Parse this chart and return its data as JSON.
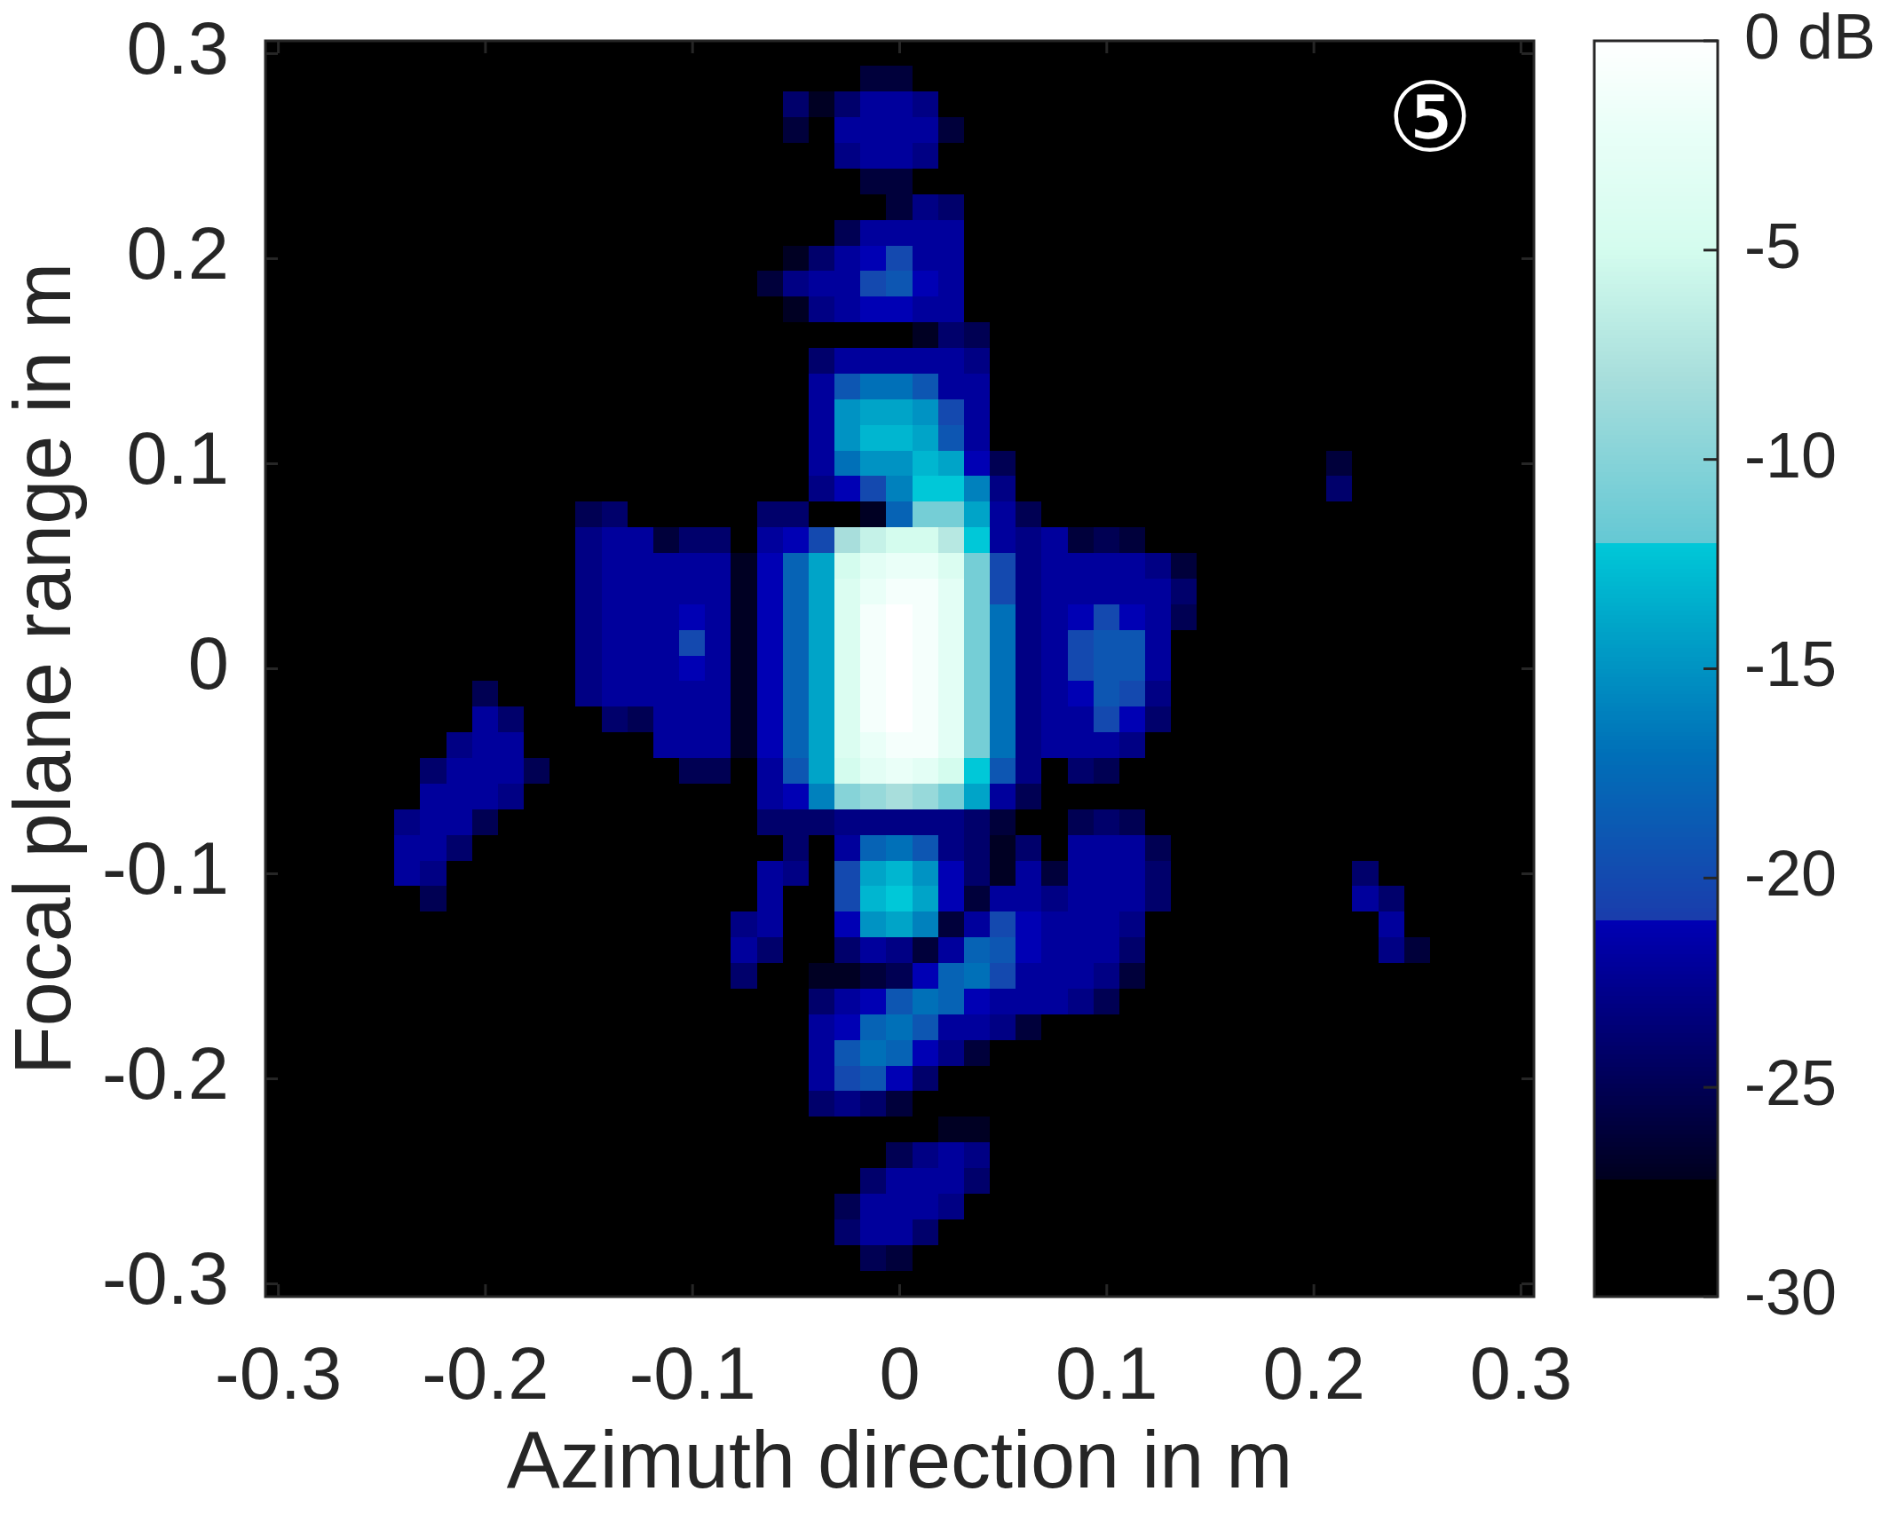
{
  "chart_data": {
    "type": "heatmap",
    "xlabel": "Azimuth direction in m",
    "ylabel": "Focal plane range in m",
    "annotations": [
      "⑤"
    ],
    "clim": [
      -30,
      0
    ],
    "cticks": [
      {
        "value": 0,
        "label": "0 dB"
      },
      -5,
      -10,
      -15,
      -20,
      -25,
      -30
    ],
    "categories": [
      "-0.3",
      null,
      null,
      null,
      null,
      null,
      null,
      null,
      "-0.2",
      null,
      null,
      null,
      null,
      null,
      null,
      null,
      "-0.1",
      null,
      null,
      null,
      null,
      null,
      null,
      null,
      "0",
      null,
      null,
      null,
      null,
      null,
      null,
      null,
      "0.1",
      null,
      null,
      null,
      null,
      null,
      null,
      null,
      "0.2",
      null,
      null,
      null,
      null,
      null,
      null,
      null,
      "0.3"
    ],
    "y_categories": [
      "0.3",
      null,
      null,
      null,
      null,
      null,
      null,
      null,
      "0.2",
      null,
      null,
      null,
      null,
      null,
      null,
      null,
      "0.1",
      null,
      null,
      null,
      null,
      null,
      null,
      null,
      "0",
      null,
      null,
      null,
      null,
      null,
      null,
      null,
      "-0.1",
      null,
      null,
      null,
      null,
      null,
      null,
      null,
      "-0.2",
      null,
      null,
      null,
      null,
      null,
      null,
      null,
      "-0.3"
    ],
    "cells": [
      [
        -30,
        -30,
        -30,
        -30,
        -30,
        -30,
        -30,
        -30,
        -30,
        -30,
        -30,
        -30,
        -30,
        -30,
        -30,
        -30,
        -30,
        -30,
        -30,
        -30,
        -30,
        -30,
        -30,
        -30,
        -30,
        -30,
        -30,
        -30,
        -30,
        -30,
        -30,
        -30,
        -30,
        -30,
        -30,
        -30,
        -30,
        -30,
        -30,
        -30,
        -30,
        -30,
        -30,
        -30,
        -30,
        -30,
        -30,
        -30,
        -30
      ],
      [
        -30,
        -30,
        -30,
        -30,
        -30,
        -30,
        -30,
        -30,
        -30,
        -30,
        -30,
        -30,
        -30,
        -30,
        -30,
        -30,
        -30,
        -30,
        -30,
        -30,
        -30,
        -30,
        -30,
        -26,
        -26,
        -30,
        -30,
        -30,
        -30,
        -30,
        -30,
        -30,
        -30,
        -30,
        -30,
        -30,
        -30,
        -30,
        -30,
        -30,
        -30,
        -30,
        -30,
        -30,
        -30,
        -30,
        -30,
        -30,
        -30
      ],
      [
        -30,
        -30,
        -30,
        -30,
        -30,
        -30,
        -30,
        -30,
        -30,
        -30,
        -30,
        -30,
        -30,
        -30,
        -30,
        -30,
        -30,
        -30,
        -30,
        -30,
        -24,
        -27,
        -24,
        -22,
        -22,
        -23,
        -30,
        -30,
        -30,
        -30,
        -30,
        -30,
        -30,
        -30,
        -30,
        -30,
        -30,
        -30,
        -30,
        -30,
        -30,
        -30,
        -30,
        -30,
        -30,
        -30,
        -30,
        -30,
        -30
      ],
      [
        -30,
        -30,
        -30,
        -30,
        -30,
        -30,
        -30,
        -30,
        -30,
        -30,
        -30,
        -30,
        -30,
        -30,
        -30,
        -30,
        -30,
        -30,
        -30,
        -30,
        -26,
        -30,
        -22,
        -22,
        -22,
        -22,
        -26,
        -30,
        -30,
        -30,
        -30,
        -30,
        -30,
        -30,
        -30,
        -30,
        -30,
        -30,
        -30,
        -30,
        -30,
        -30,
        -30,
        -30,
        -30,
        -30,
        -30,
        -30,
        -30
      ],
      [
        -30,
        -30,
        -30,
        -30,
        -30,
        -30,
        -30,
        -30,
        -30,
        -30,
        -30,
        -30,
        -30,
        -30,
        -30,
        -30,
        -30,
        -30,
        -30,
        -30,
        -30,
        -30,
        -23,
        -22,
        -22,
        -23,
        -30,
        -30,
        -30,
        -30,
        -30,
        -30,
        -30,
        -30,
        -30,
        -30,
        -30,
        -30,
        -30,
        -30,
        -30,
        -30,
        -30,
        -30,
        -30,
        -30,
        -30,
        -30,
        -30
      ],
      [
        -30,
        -30,
        -30,
        -30,
        -30,
        -30,
        -30,
        -30,
        -30,
        -30,
        -30,
        -30,
        -30,
        -30,
        -30,
        -30,
        -30,
        -30,
        -30,
        -30,
        -30,
        -30,
        -30,
        -26,
        -26,
        -30,
        -30,
        -30,
        -30,
        -30,
        -30,
        -30,
        -30,
        -30,
        -30,
        -30,
        -30,
        -30,
        -30,
        -30,
        -30,
        -30,
        -30,
        -30,
        -30,
        -30,
        -30,
        -30,
        -30
      ],
      [
        -30,
        -30,
        -30,
        -30,
        -30,
        -30,
        -30,
        -30,
        -30,
        -30,
        -30,
        -30,
        -30,
        -30,
        -30,
        -30,
        -30,
        -30,
        -30,
        -30,
        -30,
        -30,
        -30,
        -30,
        -26,
        -23,
        -24,
        -30,
        -30,
        -30,
        -30,
        -30,
        -30,
        -30,
        -30,
        -30,
        -30,
        -30,
        -30,
        -30,
        -30,
        -30,
        -30,
        -30,
        -30,
        -30,
        -30,
        -30,
        -30
      ],
      [
        -30,
        -30,
        -30,
        -30,
        -30,
        -30,
        -30,
        -30,
        -30,
        -30,
        -30,
        -30,
        -30,
        -30,
        -30,
        -30,
        -30,
        -30,
        -30,
        -30,
        -30,
        -30,
        -25,
        -22,
        -22,
        -22,
        -22,
        -30,
        -30,
        -30,
        -30,
        -30,
        -30,
        -30,
        -30,
        -30,
        -30,
        -30,
        -30,
        -30,
        -30,
        -30,
        -30,
        -30,
        -30,
        -30,
        -30,
        -30,
        -30
      ],
      [
        -30,
        -30,
        -30,
        -30,
        -30,
        -30,
        -30,
        -30,
        -30,
        -30,
        -30,
        -30,
        -30,
        -30,
        -30,
        -30,
        -30,
        -30,
        -30,
        -30,
        -27,
        -24,
        -22,
        -21,
        -20,
        -22,
        -22,
        -30,
        -30,
        -30,
        -30,
        -30,
        -30,
        -30,
        -30,
        -30,
        -30,
        -30,
        -30,
        -30,
        -30,
        -30,
        -30,
        -30,
        -30,
        -30,
        -30,
        -30,
        -30
      ],
      [
        -30,
        -30,
        -30,
        -30,
        -30,
        -30,
        -30,
        -30,
        -30,
        -30,
        -30,
        -30,
        -30,
        -30,
        -30,
        -30,
        -30,
        -30,
        -30,
        -26,
        -23,
        -22,
        -22,
        -20,
        -19,
        -21,
        -22,
        -30,
        -30,
        -30,
        -30,
        -30,
        -30,
        -30,
        -30,
        -30,
        -30,
        -30,
        -30,
        -30,
        -30,
        -30,
        -30,
        -30,
        -30,
        -30,
        -30,
        -30,
        -30
      ],
      [
        -30,
        -30,
        -30,
        -30,
        -30,
        -30,
        -30,
        -30,
        -30,
        -30,
        -30,
        -30,
        -30,
        -30,
        -30,
        -30,
        -30,
        -30,
        -30,
        -30,
        -27,
        -23,
        -22,
        -21,
        -21,
        -22,
        -22,
        -30,
        -30,
        -30,
        -30,
        -30,
        -30,
        -30,
        -30,
        -30,
        -30,
        -30,
        -30,
        -30,
        -30,
        -30,
        -30,
        -30,
        -30,
        -30,
        -30,
        -30,
        -30
      ],
      [
        -30,
        -30,
        -30,
        -30,
        -30,
        -30,
        -30,
        -30,
        -30,
        -30,
        -30,
        -30,
        -30,
        -30,
        -30,
        -30,
        -30,
        -30,
        -30,
        -30,
        -30,
        -30,
        -28,
        -28,
        -28,
        -27,
        -24,
        -25,
        -30,
        -30,
        -30,
        -30,
        -30,
        -30,
        -30,
        -30,
        -30,
        -30,
        -30,
        -30,
        -30,
        -30,
        -30,
        -30,
        -30,
        -30,
        -30,
        -30,
        -30
      ],
      [
        -30,
        -30,
        -30,
        -30,
        -30,
        -30,
        -30,
        -30,
        -30,
        -30,
        -30,
        -30,
        -30,
        -30,
        -30,
        -30,
        -30,
        -30,
        -30,
        -30,
        -30,
        -24,
        -22,
        -22,
        -22,
        -22,
        -22,
        -23,
        -30,
        -30,
        -30,
        -30,
        -30,
        -30,
        -30,
        -30,
        -30,
        -30,
        -30,
        -30,
        -30,
        -30,
        -30,
        -30,
        -30,
        -30,
        -30,
        -30,
        -30
      ],
      [
        -30,
        -30,
        -30,
        -30,
        -30,
        -30,
        -30,
        -30,
        -30,
        -30,
        -30,
        -30,
        -30,
        -30,
        -30,
        -30,
        -30,
        -30,
        -30,
        -30,
        -30,
        -22,
        -19,
        -17,
        -17,
        -19,
        -22,
        -22,
        -30,
        -30,
        -30,
        -30,
        -30,
        -30,
        -30,
        -30,
        -30,
        -30,
        -30,
        -30,
        -30,
        -30,
        -30,
        -30,
        -30,
        -30,
        -30,
        -30,
        -30
      ],
      [
        -30,
        -30,
        -30,
        -30,
        -30,
        -30,
        -30,
        -30,
        -30,
        -30,
        -30,
        -30,
        -30,
        -30,
        -30,
        -30,
        -30,
        -30,
        -30,
        -30,
        -30,
        -22,
        -15,
        -14,
        -14,
        -15,
        -20,
        -22,
        -30,
        -30,
        -30,
        -30,
        -30,
        -30,
        -30,
        -30,
        -30,
        -30,
        -30,
        -30,
        -30,
        -30,
        -30,
        -30,
        -30,
        -30,
        -30,
        -30,
        -30
      ],
      [
        -30,
        -30,
        -30,
        -30,
        -30,
        -30,
        -30,
        -30,
        -30,
        -30,
        -30,
        -30,
        -30,
        -30,
        -30,
        -30,
        -30,
        -30,
        -30,
        -30,
        -30,
        -22,
        -15,
        -13,
        -13,
        -14,
        -19,
        -22,
        -30,
        -30,
        -30,
        -30,
        -30,
        -30,
        -30,
        -30,
        -30,
        -30,
        -30,
        -30,
        -30,
        -30,
        -30,
        -30,
        -30,
        -30,
        -30,
        -30,
        -30
      ],
      [
        -30,
        -30,
        -30,
        -30,
        -30,
        -30,
        -30,
        -30,
        -30,
        -30,
        -30,
        -30,
        -30,
        -30,
        -30,
        -30,
        -30,
        -30,
        -30,
        -30,
        -30,
        -22,
        -17,
        -15,
        -15,
        -13,
        -14,
        -21,
        -25,
        -30,
        -30,
        -30,
        -30,
        -30,
        -30,
        -30,
        -30,
        -30,
        -30,
        -30,
        -30,
        -26,
        -30,
        -30,
        -30,
        -30,
        -30,
        -30,
        -30
      ],
      [
        -30,
        -30,
        -30,
        -30,
        -30,
        -30,
        -30,
        -30,
        -30,
        -30,
        -30,
        -30,
        -30,
        -30,
        -30,
        -30,
        -30,
        -30,
        -30,
        -30,
        -30,
        -23,
        -21,
        -20,
        -16,
        -12,
        -12,
        -16,
        -23,
        -30,
        -30,
        -30,
        -30,
        -30,
        -30,
        -30,
        -30,
        -30,
        -30,
        -30,
        -30,
        -24,
        -30,
        -30,
        -30,
        -30,
        -30,
        -30,
        -30
      ],
      [
        -30,
        -30,
        -30,
        -30,
        -30,
        -30,
        -30,
        -30,
        -30,
        -30,
        -30,
        -30,
        -25,
        -24,
        -30,
        -30,
        -30,
        -30,
        -30,
        -24,
        -24,
        -28,
        -28,
        -27,
        -18,
        -11,
        -11,
        -14,
        -22,
        -25,
        -30,
        -30,
        -30,
        -30,
        -30,
        -30,
        -30,
        -30,
        -30,
        -30,
        -30,
        -30,
        -30,
        -30,
        -30,
        -30,
        -30,
        -30,
        -30
      ],
      [
        -30,
        -30,
        -30,
        -30,
        -30,
        -30,
        -30,
        -30,
        -30,
        -30,
        -30,
        -30,
        -23,
        -22,
        -22,
        -26,
        -24,
        -24,
        -30,
        -22,
        -21,
        -20,
        -8,
        -6,
        -5,
        -5,
        -7,
        -12,
        -22,
        -23,
        -22,
        -26,
        -25,
        -26,
        -30,
        -30,
        -30,
        -30,
        -30,
        -30,
        -30,
        -30,
        -30,
        -30,
        -30,
        -30,
        -30,
        -30,
        -30
      ],
      [
        -30,
        -30,
        -30,
        -30,
        -30,
        -30,
        -30,
        -30,
        -30,
        -30,
        -30,
        -30,
        -23,
        -22,
        -22,
        -22,
        -22,
        -22,
        -27,
        -21,
        -18,
        -14,
        -5,
        -3,
        -2,
        -2,
        -4,
        -11,
        -20,
        -23,
        -22,
        -22,
        -22,
        -22,
        -23,
        -26,
        -30,
        -30,
        -30,
        -30,
        -30,
        -30,
        -30,
        -30,
        -30,
        -30,
        -30,
        -30,
        -30
      ],
      [
        -30,
        -30,
        -30,
        -30,
        -30,
        -30,
        -30,
        -30,
        -30,
        -30,
        -30,
        -30,
        -23,
        -22,
        -22,
        -22,
        -22,
        -22,
        -27,
        -21,
        -18,
        -14,
        -4,
        -2,
        -1,
        -1,
        -3,
        -11,
        -20,
        -23,
        -22,
        -22,
        -22,
        -22,
        -22,
        -24,
        -30,
        -30,
        -30,
        -30,
        -30,
        -30,
        -30,
        -30,
        -30,
        -30,
        -30,
        -30,
        -30
      ],
      [
        -30,
        -28,
        -30,
        -30,
        -30,
        -30,
        -30,
        -30,
        -30,
        -30,
        -30,
        -30,
        -23,
        -22,
        -22,
        -22,
        -21,
        -22,
        -27,
        -21,
        -18,
        -14,
        -4,
        -1,
        0,
        -1,
        -3,
        -11,
        -17,
        -23,
        -22,
        -21,
        -20,
        -21,
        -22,
        -25,
        -30,
        -30,
        -30,
        -30,
        -30,
        -30,
        -30,
        -30,
        -30,
        -30,
        -30,
        -30,
        -30
      ],
      [
        -30,
        -30,
        -30,
        -30,
        -30,
        -30,
        -30,
        -30,
        -30,
        -30,
        -30,
        -30,
        -23,
        -22,
        -22,
        -22,
        -20,
        -22,
        -27,
        -21,
        -18,
        -14,
        -4,
        -1,
        0,
        -1,
        -3,
        -11,
        -17,
        -23,
        -22,
        -20,
        -19,
        -19,
        -22,
        -30,
        -30,
        -30,
        -30,
        -30,
        -30,
        -30,
        -30,
        -30,
        -30,
        -30,
        -30,
        -30,
        -30
      ],
      [
        -30,
        -30,
        -30,
        -30,
        -30,
        -30,
        -30,
        -30,
        -30,
        -30,
        -30,
        -30,
        -23,
        -22,
        -22,
        -22,
        -21,
        -22,
        -27,
        -21,
        -18,
        -14,
        -4,
        -1,
        0,
        -1,
        -3,
        -11,
        -17,
        -23,
        -22,
        -20,
        -19,
        -19,
        -22,
        -30,
        -30,
        -30,
        -30,
        -30,
        -30,
        -30,
        -30,
        -30,
        -30,
        -30,
        -30,
        -30,
        -30
      ],
      [
        -30,
        -30,
        -30,
        -30,
        -30,
        -30,
        -30,
        -30,
        -25,
        -30,
        -30,
        -30,
        -23,
        -22,
        -22,
        -22,
        -22,
        -22,
        -27,
        -21,
        -18,
        -14,
        -4,
        -1,
        0,
        -1,
        -3,
        -11,
        -17,
        -23,
        -22,
        -21,
        -19,
        -20,
        -23,
        -30,
        -30,
        -30,
        -30,
        -30,
        -30,
        -30,
        -30,
        -30,
        -30,
        -30,
        -30,
        -30,
        -30
      ],
      [
        -30,
        -30,
        -30,
        -30,
        -30,
        -30,
        -30,
        -30,
        -22,
        -24,
        -30,
        -30,
        -30,
        -24,
        -25,
        -22,
        -22,
        -22,
        -27,
        -21,
        -18,
        -14,
        -4,
        -1,
        0,
        -1,
        -3,
        -11,
        -17,
        -23,
        -22,
        -22,
        -20,
        -21,
        -24,
        -30,
        -30,
        -30,
        -30,
        -30,
        -30,
        -30,
        -30,
        -30,
        -30,
        -30,
        -30,
        -30,
        -30
      ],
      [
        -30,
        -30,
        -30,
        -30,
        -30,
        -30,
        -30,
        -23,
        -22,
        -22,
        -30,
        -30,
        -30,
        -30,
        -30,
        -22,
        -22,
        -22,
        -27,
        -21,
        -18,
        -14,
        -4,
        -2,
        -1,
        -1,
        -3,
        -11,
        -17,
        -23,
        -22,
        -22,
        -22,
        -23,
        -30,
        -30,
        -30,
        -30,
        -30,
        -30,
        -30,
        -30,
        -30,
        -30,
        -30,
        -30,
        -30,
        -30,
        -30
      ],
      [
        -30,
        -30,
        -30,
        -30,
        -30,
        -30,
        -24,
        -22,
        -22,
        -22,
        -25,
        -30,
        -30,
        -30,
        -30,
        -30,
        -25,
        -25,
        -30,
        -22,
        -19,
        -14,
        -5,
        -3,
        -2,
        -3,
        -5,
        -12,
        -19,
        -23,
        -30,
        -24,
        -25,
        -30,
        -30,
        -30,
        -30,
        -30,
        -30,
        -30,
        -30,
        -30,
        -30,
        -30,
        -30,
        -30,
        -30,
        -30,
        -30
      ],
      [
        -30,
        -30,
        -30,
        -30,
        -30,
        -30,
        -22,
        -22,
        -22,
        -23,
        -30,
        -30,
        -30,
        -30,
        -30,
        -30,
        -30,
        -30,
        -30,
        -22,
        -21,
        -16,
        -10,
        -9,
        -8,
        -9,
        -11,
        -14,
        -22,
        -25,
        -30,
        -30,
        -30,
        -30,
        -30,
        -30,
        -30,
        -30,
        -30,
        -30,
        -30,
        -30,
        -30,
        -30,
        -30,
        -30,
        -30,
        -30,
        -30
      ],
      [
        -30,
        -30,
        -30,
        -30,
        -30,
        -23,
        -22,
        -22,
        -25,
        -30,
        -30,
        -30,
        -30,
        -30,
        -30,
        -30,
        -30,
        -30,
        -30,
        -24,
        -24,
        -24,
        -23,
        -23,
        -23,
        -23,
        -23,
        -24,
        -26,
        -30,
        -30,
        -25,
        -24,
        -25,
        -30,
        -30,
        -30,
        -30,
        -30,
        -30,
        -30,
        -30,
        -30,
        -30,
        -30,
        -30,
        -30,
        -30,
        -30
      ],
      [
        -30,
        -30,
        -30,
        -30,
        -30,
        -22,
        -22,
        -24,
        -30,
        -30,
        -30,
        -30,
        -30,
        -30,
        -30,
        -30,
        -30,
        -30,
        -30,
        -30,
        -24,
        -30,
        -22,
        -18,
        -17,
        -19,
        -23,
        -24,
        -27,
        -24,
        -30,
        -22,
        -22,
        -22,
        -25,
        -30,
        -30,
        -30,
        -30,
        -30,
        -30,
        -30,
        -30,
        -30,
        -30,
        -30,
        -30,
        -30,
        -30
      ],
      [
        -30,
        -30,
        -30,
        -30,
        -30,
        -22,
        -23,
        -30,
        -30,
        -30,
        -30,
        -30,
        -30,
        -30,
        -30,
        -30,
        -30,
        -30,
        -30,
        -22,
        -23,
        -30,
        -20,
        -14,
        -13,
        -15,
        -21,
        -24,
        -27,
        -22,
        -26,
        -22,
        -22,
        -22,
        -24,
        -30,
        -30,
        -30,
        -30,
        -30,
        -30,
        -30,
        -24,
        -30,
        -30,
        -30,
        -30,
        -30,
        -30
      ],
      [
        -30,
        -30,
        -30,
        -30,
        -30,
        -30,
        -25,
        -30,
        -30,
        -30,
        -30,
        -30,
        -30,
        -30,
        -30,
        -30,
        -30,
        -30,
        -30,
        -22,
        -30,
        -30,
        -20,
        -13,
        -12,
        -14,
        -21,
        -26,
        -22,
        -22,
        -23,
        -22,
        -22,
        -22,
        -24,
        -30,
        -30,
        -30,
        -30,
        -30,
        -30,
        -30,
        -22,
        -24,
        -30,
        -30,
        -30,
        -30,
        -30
      ],
      [
        -30,
        -30,
        -30,
        -30,
        -30,
        -30,
        -30,
        -30,
        -30,
        -30,
        -30,
        -30,
        -30,
        -30,
        -30,
        -30,
        -30,
        -30,
        -23,
        -22,
        -30,
        -30,
        -21,
        -15,
        -14,
        -16,
        -26,
        -22,
        -20,
        -21,
        -22,
        -22,
        -22,
        -23,
        -30,
        -30,
        -30,
        -30,
        -30,
        -30,
        -30,
        -30,
        -30,
        -22,
        -30,
        -30,
        -30,
        -30,
        -30
      ],
      [
        -30,
        -30,
        -30,
        -30,
        -30,
        -30,
        -30,
        -30,
        -30,
        -30,
        -30,
        -30,
        -30,
        -30,
        -30,
        -30,
        -30,
        -30,
        -22,
        -24,
        -30,
        -30,
        -24,
        -22,
        -23,
        -26,
        -22,
        -18,
        -19,
        -21,
        -22,
        -22,
        -22,
        -24,
        -30,
        -30,
        -30,
        -30,
        -30,
        -30,
        -30,
        -30,
        -30,
        -23,
        -26,
        -30,
        -30,
        -30,
        -30
      ],
      [
        -30,
        -30,
        -30,
        -30,
        -30,
        -30,
        -30,
        -30,
        -30,
        -30,
        -30,
        -30,
        -30,
        -30,
        -30,
        -30,
        -30,
        -30,
        -24,
        -30,
        -30,
        -27,
        -27,
        -26,
        -25,
        -21,
        -18,
        -17,
        -20,
        -22,
        -22,
        -22,
        -23,
        -26,
        -30,
        -30,
        -30,
        -30,
        -30,
        -30,
        -30,
        -30,
        -30,
        -30,
        -30,
        -30,
        -30,
        -30,
        -30
      ],
      [
        -30,
        -30,
        -30,
        -30,
        -30,
        -30,
        -30,
        -30,
        -30,
        -30,
        -30,
        -30,
        -30,
        -30,
        -30,
        -30,
        -30,
        -30,
        -30,
        -30,
        -30,
        -24,
        -22,
        -21,
        -19,
        -17,
        -18,
        -21,
        -22,
        -22,
        -22,
        -23,
        -25,
        -30,
        -30,
        -30,
        -30,
        -30,
        -30,
        -30,
        -30,
        -30,
        -30,
        -30,
        -30,
        -30,
        -30,
        -30,
        -30
      ],
      [
        -30,
        -30,
        -30,
        -30,
        -30,
        -30,
        -30,
        -30,
        -30,
        -30,
        -30,
        -30,
        -30,
        -30,
        -30,
        -30,
        -30,
        -30,
        -30,
        -30,
        -30,
        -22,
        -21,
        -18,
        -17,
        -19,
        -22,
        -22,
        -23,
        -26,
        -30,
        -30,
        -30,
        -30,
        -30,
        -30,
        -30,
        -30,
        -30,
        -30,
        -30,
        -30,
        -30,
        -30,
        -30,
        -30,
        -30,
        -30,
        -30
      ],
      [
        -30,
        -30,
        -30,
        -30,
        -30,
        -30,
        -30,
        -30,
        -30,
        -30,
        -30,
        -30,
        -30,
        -30,
        -30,
        -30,
        -30,
        -30,
        -30,
        -30,
        -30,
        -22,
        -19,
        -17,
        -18,
        -21,
        -23,
        -26,
        -30,
        -30,
        -30,
        -30,
        -30,
        -30,
        -30,
        -30,
        -30,
        -30,
        -30,
        -30,
        -30,
        -30,
        -30,
        -30,
        -30,
        -30,
        -30,
        -30,
        -30
      ],
      [
        -30,
        -30,
        -30,
        -30,
        -30,
        -30,
        -30,
        -30,
        -30,
        -30,
        -30,
        -30,
        -30,
        -30,
        -30,
        -30,
        -30,
        -30,
        -30,
        -30,
        -30,
        -22,
        -20,
        -19,
        -21,
        -24,
        -30,
        -30,
        -30,
        -30,
        -30,
        -30,
        -30,
        -30,
        -30,
        -30,
        -30,
        -30,
        -30,
        -30,
        -30,
        -30,
        -30,
        -30,
        -30,
        -30,
        -30,
        -30,
        -30
      ],
      [
        -30,
        -30,
        -30,
        -30,
        -30,
        -30,
        -30,
        -30,
        -30,
        -30,
        -30,
        -30,
        -30,
        -30,
        -30,
        -30,
        -30,
        -30,
        -30,
        -30,
        -30,
        -24,
        -23,
        -24,
        -26,
        -30,
        -30,
        -30,
        -30,
        -30,
        -30,
        -30,
        -30,
        -30,
        -30,
        -30,
        -30,
        -30,
        -30,
        -30,
        -30,
        -30,
        -30,
        -30,
        -30,
        -30,
        -30,
        -30,
        -30
      ],
      [
        -30,
        -30,
        -30,
        -30,
        -30,
        -30,
        -30,
        -30,
        -30,
        -30,
        -30,
        -30,
        -30,
        -30,
        -30,
        -30,
        -30,
        -30,
        -30,
        -30,
        -30,
        -30,
        -30,
        -30,
        -30,
        -30,
        -27,
        -27,
        -30,
        -30,
        -30,
        -30,
        -30,
        -30,
        -30,
        -30,
        -30,
        -30,
        -30,
        -30,
        -30,
        -30,
        -30,
        -30,
        -30,
        -30,
        -30,
        -30,
        -30
      ],
      [
        -30,
        -30,
        -30,
        -30,
        -30,
        -30,
        -30,
        -30,
        -30,
        -30,
        -30,
        -30,
        -30,
        -30,
        -30,
        -30,
        -30,
        -30,
        -30,
        -30,
        -30,
        -30,
        -30,
        -30,
        -25,
        -23,
        -22,
        -23,
        -30,
        -30,
        -30,
        -30,
        -30,
        -30,
        -30,
        -30,
        -30,
        -30,
        -30,
        -30,
        -30,
        -30,
        -30,
        -30,
        -30,
        -30,
        -30,
        -30,
        -30
      ],
      [
        -30,
        -30,
        -30,
        -30,
        -30,
        -30,
        -30,
        -30,
        -30,
        -30,
        -30,
        -30,
        -30,
        -30,
        -30,
        -30,
        -30,
        -30,
        -30,
        -30,
        -30,
        -30,
        -30,
        -24,
        -22,
        -22,
        -22,
        -24,
        -30,
        -30,
        -30,
        -30,
        -30,
        -30,
        -30,
        -30,
        -30,
        -30,
        -30,
        -30,
        -30,
        -30,
        -30,
        -30,
        -30,
        -30,
        -30,
        -30,
        -30
      ],
      [
        -30,
        -30,
        -30,
        -30,
        -30,
        -30,
        -30,
        -30,
        -30,
        -30,
        -30,
        -30,
        -30,
        -30,
        -30,
        -30,
        -30,
        -30,
        -30,
        -30,
        -30,
        -30,
        -25,
        -22,
        -22,
        -22,
        -23,
        -30,
        -30,
        -30,
        -30,
        -30,
        -30,
        -30,
        -30,
        -30,
        -30,
        -30,
        -30,
        -30,
        -30,
        -30,
        -30,
        -30,
        -30,
        -30,
        -30,
        -30,
        -30
      ],
      [
        -30,
        -30,
        -30,
        -30,
        -30,
        -30,
        -30,
        -30,
        -30,
        -30,
        -30,
        -30,
        -30,
        -30,
        -30,
        -30,
        -30,
        -30,
        -30,
        -30,
        -30,
        -30,
        -24,
        -22,
        -22,
        -24,
        -30,
        -30,
        -30,
        -30,
        -30,
        -30,
        -30,
        -30,
        -30,
        -30,
        -30,
        -30,
        -30,
        -30,
        -30,
        -30,
        -30,
        -30,
        -30,
        -30,
        -30,
        -30,
        -30
      ],
      [
        -30,
        -30,
        -30,
        -30,
        -30,
        -30,
        -30,
        -30,
        -30,
        -30,
        -30,
        -30,
        -30,
        -30,
        -30,
        -30,
        -30,
        -30,
        -30,
        -30,
        -30,
        -30,
        -30,
        -25,
        -26,
        -30,
        -30,
        -30,
        -30,
        -30,
        -30,
        -30,
        -30,
        -30,
        -30,
        -30,
        -30,
        -30,
        -30,
        -30,
        -30,
        -30,
        -30,
        -30,
        -30,
        -30,
        -30,
        -30,
        -30
      ],
      [
        -30,
        -30,
        -30,
        -30,
        -30,
        -30,
        -30,
        -30,
        -30,
        -30,
        -30,
        -30,
        -30,
        -30,
        -30,
        -30,
        -30,
        -30,
        -30,
        -30,
        -30,
        -30,
        -30,
        -30,
        -30,
        -30,
        -30,
        -30,
        -30,
        -30,
        -30,
        -30,
        -30,
        -30,
        -30,
        -30,
        -30,
        -30,
        -30,
        -30,
        -30,
        -30,
        -30,
        -30,
        -30,
        -30,
        -30,
        -30,
        -30
      ]
    ]
  }
}
